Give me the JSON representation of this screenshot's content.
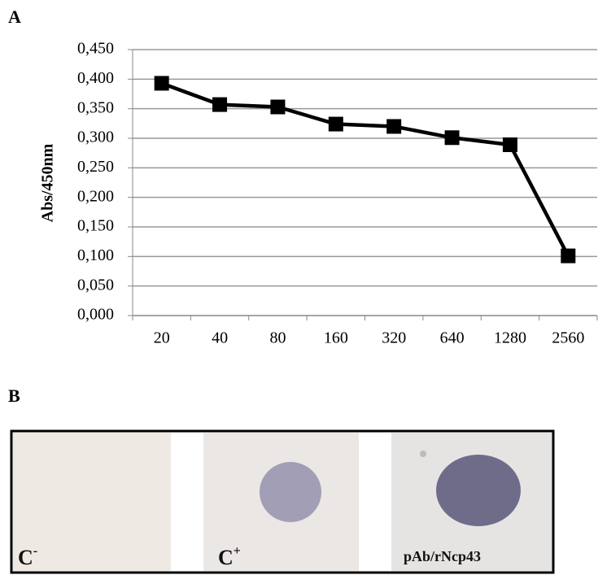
{
  "panel_a": "A",
  "panel_b": "B",
  "chart_data": {
    "type": "line",
    "y_label": "Abs/450nm",
    "categories": [
      "20",
      "40",
      "80",
      "160",
      "320",
      "640",
      "1280",
      "2560"
    ],
    "values": [
      0.393,
      0.357,
      0.353,
      0.324,
      0.32,
      0.301,
      0.289,
      0.101
    ],
    "color": "#000000",
    "ylim": [
      0,
      0.45
    ],
    "yticks": [
      {
        "value": 0,
        "label": "0,000"
      },
      {
        "value": 0.05,
        "label": "0,050"
      },
      {
        "value": 0.1,
        "label": "0,100"
      },
      {
        "value": 0.15,
        "label": "0,150"
      },
      {
        "value": 0.2,
        "label": "0,200"
      },
      {
        "value": 0.25,
        "label": "0,250"
      },
      {
        "value": 0.3,
        "label": "0,300"
      },
      {
        "value": 0.35,
        "label": "0,350"
      },
      {
        "value": 0.4,
        "label": "0,400"
      },
      {
        "value": 0.45,
        "label": "0,450"
      }
    ],
    "grid": true
  },
  "blots": [
    {
      "label": "C",
      "sup": "-"
    },
    {
      "label": "C",
      "sup": "+"
    },
    {
      "label": "pAb/rNcp43"
    }
  ]
}
